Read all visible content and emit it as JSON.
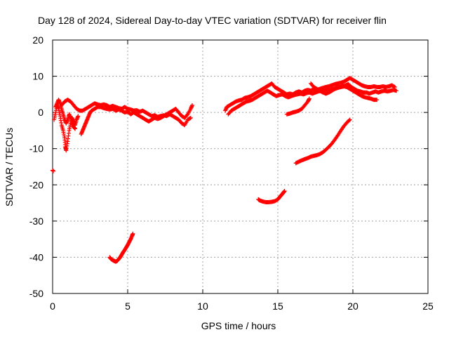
{
  "chart_data": {
    "type": "scatter",
    "title": "Day 128 of 2024, Sidereal Day-to-day VTEC variation (SDTVAR) for receiver flin",
    "xlabel": "GPS time / hours",
    "ylabel": "SDTVAR / TECUs",
    "xlim": [
      0,
      25
    ],
    "ylim": [
      -50,
      20
    ],
    "x_ticks": [
      0,
      5,
      10,
      15,
      20,
      25
    ],
    "y_ticks": [
      20,
      10,
      0,
      -10,
      -20,
      -30,
      -40,
      -50
    ],
    "grid": true,
    "marker": "+",
    "color": "#ff0000",
    "segments": [
      {
        "points": [
          [
            0.0,
            -16.0
          ],
          [
            0.05,
            -16.2
          ]
        ]
      },
      {
        "points": [
          [
            0.1,
            -2.0
          ],
          [
            0.2,
            0.0
          ],
          [
            0.3,
            2.0
          ],
          [
            0.4,
            1.0
          ],
          [
            0.5,
            -1.0
          ],
          [
            0.6,
            -3.5
          ],
          [
            0.7,
            -5.0
          ],
          [
            0.8,
            -7.0
          ],
          [
            0.85,
            -9.5
          ],
          [
            0.9,
            -10.5
          ],
          [
            1.0,
            -8.0
          ],
          [
            1.1,
            -5.0
          ],
          [
            1.2,
            -3.0
          ],
          [
            1.3,
            -1.5
          ],
          [
            1.4,
            -2.5
          ],
          [
            1.5,
            -3.5
          ],
          [
            1.6,
            -2.0
          ],
          [
            1.7,
            -1.0
          ]
        ]
      },
      {
        "points": [
          [
            0.2,
            1.5
          ],
          [
            0.3,
            2.5
          ],
          [
            0.4,
            3.5
          ],
          [
            0.5,
            2.5
          ],
          [
            0.6,
            1.0
          ],
          [
            0.7,
            -0.5
          ],
          [
            0.8,
            -2.0
          ],
          [
            0.9,
            -3.0
          ],
          [
            1.0,
            -2.0
          ],
          [
            1.1,
            -0.5
          ],
          [
            1.2,
            -1.5
          ],
          [
            1.3,
            -3.0
          ],
          [
            1.4,
            -4.0
          ],
          [
            1.5,
            -4.5
          ]
        ]
      },
      {
        "points": [
          [
            0.6,
            2.0
          ],
          [
            0.8,
            3.0
          ],
          [
            1.0,
            3.5
          ],
          [
            1.2,
            3.0
          ],
          [
            1.4,
            2.0
          ],
          [
            1.6,
            1.0
          ],
          [
            1.8,
            0.5
          ],
          [
            2.0,
            0.5
          ],
          [
            2.2,
            1.0
          ],
          [
            2.4,
            1.5
          ],
          [
            2.6,
            2.0
          ],
          [
            2.8,
            2.5
          ],
          [
            3.0,
            2.2
          ],
          [
            3.2,
            2.0
          ],
          [
            3.4,
            2.2
          ],
          [
            3.6,
            2.0
          ],
          [
            3.8,
            1.5
          ],
          [
            4.0,
            1.8
          ],
          [
            4.2,
            1.5
          ],
          [
            4.4,
            1.2
          ],
          [
            4.6,
            1.0
          ],
          [
            4.8,
            1.5
          ],
          [
            5.0,
            1.0
          ],
          [
            5.2,
            0.8
          ],
          [
            5.4,
            0.5
          ],
          [
            5.6,
            0.6
          ],
          [
            5.8,
            0.2
          ],
          [
            6.0,
            0.5
          ],
          [
            6.2,
            0.0
          ],
          [
            6.4,
            -0.5
          ],
          [
            6.6,
            -1.0
          ],
          [
            6.8,
            -0.8
          ],
          [
            7.0,
            -1.2
          ],
          [
            7.2,
            -1.0
          ],
          [
            7.4,
            -0.8
          ],
          [
            7.6,
            -1.0
          ],
          [
            7.8,
            -0.5
          ],
          [
            8.0,
            -1.0
          ],
          [
            8.2,
            -1.5
          ],
          [
            8.4,
            -2.0
          ],
          [
            8.6,
            -3.0
          ],
          [
            8.8,
            -3.5
          ],
          [
            9.0,
            -2.0
          ],
          [
            9.2,
            -1.5
          ]
        ]
      },
      {
        "points": [
          [
            1.9,
            -6.0
          ],
          [
            2.0,
            -5.0
          ],
          [
            2.1,
            -4.0
          ],
          [
            2.2,
            -3.0
          ],
          [
            2.3,
            -2.0
          ],
          [
            2.4,
            -1.0
          ],
          [
            2.5,
            0.0
          ],
          [
            2.6,
            0.5
          ],
          [
            2.8,
            1.0
          ],
          [
            3.0,
            1.5
          ],
          [
            3.2,
            1.5
          ],
          [
            3.4,
            1.2
          ],
          [
            3.6,
            1.0
          ],
          [
            3.8,
            0.8
          ],
          [
            4.0,
            1.0
          ],
          [
            4.2,
            0.5
          ],
          [
            4.4,
            0.8
          ],
          [
            4.6,
            0.5
          ],
          [
            4.8,
            0.0
          ],
          [
            5.0,
            0.2
          ],
          [
            5.2,
            -0.5
          ],
          [
            5.4,
            0.0
          ],
          [
            5.6,
            -0.5
          ],
          [
            5.8,
            -1.0
          ],
          [
            6.0,
            -1.5
          ],
          [
            6.2,
            -2.0
          ],
          [
            6.4,
            -2.5
          ],
          [
            6.6,
            -2.0
          ],
          [
            6.8,
            -1.5
          ],
          [
            7.0,
            -1.8
          ],
          [
            7.2,
            -1.5
          ],
          [
            7.4,
            -1.0
          ],
          [
            7.6,
            -0.5
          ],
          [
            7.8,
            0.0
          ],
          [
            8.0,
            0.5
          ],
          [
            8.2,
            1.0
          ],
          [
            8.4,
            0.0
          ],
          [
            8.6,
            -1.0
          ],
          [
            8.8,
            -1.5
          ],
          [
            9.0,
            -0.5
          ],
          [
            9.2,
            1.0
          ],
          [
            9.3,
            2.0
          ]
        ]
      },
      {
        "points": [
          [
            3.8,
            -40.0
          ],
          [
            3.9,
            -40.5
          ],
          [
            4.0,
            -40.8
          ],
          [
            4.1,
            -41.0
          ],
          [
            4.2,
            -41.2
          ],
          [
            4.3,
            -41.0
          ],
          [
            4.4,
            -40.5
          ],
          [
            4.5,
            -40.0
          ],
          [
            4.6,
            -39.3
          ],
          [
            4.7,
            -38.6
          ],
          [
            4.8,
            -38.0
          ],
          [
            4.9,
            -37.3
          ],
          [
            5.0,
            -36.6
          ],
          [
            5.1,
            -35.8
          ],
          [
            5.2,
            -35.0
          ],
          [
            5.3,
            -34.0
          ],
          [
            5.35,
            -33.5
          ]
        ]
      },
      {
        "points": [
          [
            11.5,
            0.5
          ],
          [
            11.6,
            1.5
          ],
          [
            11.8,
            2.0
          ],
          [
            12.0,
            2.5
          ],
          [
            12.2,
            3.0
          ],
          [
            12.4,
            3.3
          ],
          [
            12.6,
            3.5
          ],
          [
            12.8,
            4.0
          ],
          [
            13.0,
            4.2
          ],
          [
            13.2,
            4.5
          ],
          [
            13.4,
            5.0
          ],
          [
            13.6,
            5.5
          ],
          [
            13.8,
            6.0
          ],
          [
            14.0,
            6.5
          ],
          [
            14.2,
            7.0
          ],
          [
            14.4,
            7.5
          ],
          [
            14.6,
            8.0
          ],
          [
            14.8,
            7.0
          ],
          [
            15.0,
            6.5
          ],
          [
            15.2,
            6.0
          ],
          [
            15.4,
            5.5
          ],
          [
            15.6,
            5.0
          ],
          [
            15.8,
            5.2
          ],
          [
            16.0,
            5.0
          ],
          [
            16.2,
            5.5
          ],
          [
            16.4,
            5.8
          ],
          [
            16.6,
            5.5
          ],
          [
            16.8,
            6.0
          ],
          [
            17.0,
            6.2
          ],
          [
            17.2,
            6.0
          ],
          [
            17.4,
            6.5
          ],
          [
            17.6,
            6.2
          ],
          [
            17.8,
            6.5
          ],
          [
            18.0,
            6.8
          ],
          [
            18.2,
            7.0
          ],
          [
            18.4,
            7.2
          ],
          [
            18.6,
            7.5
          ],
          [
            18.8,
            7.8
          ],
          [
            19.0,
            8.0
          ],
          [
            19.2,
            8.2
          ],
          [
            19.4,
            8.5
          ],
          [
            19.6,
            9.0
          ],
          [
            19.8,
            9.5
          ],
          [
            20.0,
            9.0
          ],
          [
            20.2,
            8.5
          ],
          [
            20.4,
            8.0
          ],
          [
            20.6,
            7.5
          ],
          [
            20.8,
            7.2
          ],
          [
            21.0,
            7.0
          ],
          [
            21.2,
            7.0
          ],
          [
            21.4,
            7.2
          ],
          [
            21.6,
            7.0
          ],
          [
            21.8,
            7.0
          ],
          [
            22.0,
            7.2
          ],
          [
            22.2,
            7.0
          ],
          [
            22.4,
            7.2
          ],
          [
            22.6,
            7.5
          ],
          [
            22.8,
            7.0
          ]
        ]
      },
      {
        "points": [
          [
            11.7,
            -0.5
          ],
          [
            11.9,
            0.5
          ],
          [
            12.1,
            1.0
          ],
          [
            12.3,
            1.5
          ],
          [
            12.5,
            2.0
          ],
          [
            12.7,
            2.5
          ],
          [
            12.9,
            3.0
          ],
          [
            13.1,
            3.2
          ],
          [
            13.3,
            3.5
          ],
          [
            13.5,
            4.0
          ],
          [
            13.7,
            4.5
          ],
          [
            13.9,
            5.0
          ],
          [
            14.1,
            5.5
          ],
          [
            14.3,
            6.0
          ],
          [
            14.5,
            5.5
          ],
          [
            14.7,
            5.0
          ],
          [
            14.9,
            4.5
          ],
          [
            15.1,
            4.8
          ],
          [
            15.3,
            5.0
          ],
          [
            15.5,
            4.5
          ],
          [
            15.7,
            4.2
          ],
          [
            15.9,
            4.5
          ],
          [
            16.1,
            4.8
          ],
          [
            16.3,
            5.0
          ],
          [
            16.5,
            5.2
          ],
          [
            16.7,
            5.0
          ],
          [
            16.9,
            5.3
          ],
          [
            17.1,
            5.5
          ],
          [
            17.3,
            5.2
          ],
          [
            17.5,
            5.5
          ],
          [
            17.7,
            5.8
          ],
          [
            17.9,
            6.0
          ],
          [
            18.1,
            6.2
          ],
          [
            18.3,
            6.5
          ],
          [
            18.5,
            6.2
          ],
          [
            18.7,
            6.5
          ],
          [
            18.9,
            6.8
          ],
          [
            19.1,
            7.0
          ],
          [
            19.3,
            7.2
          ],
          [
            19.5,
            7.5
          ],
          [
            19.7,
            7.8
          ],
          [
            19.9,
            7.0
          ],
          [
            20.1,
            6.5
          ],
          [
            20.3,
            6.0
          ],
          [
            20.5,
            5.8
          ],
          [
            20.7,
            5.5
          ],
          [
            20.9,
            5.5
          ],
          [
            21.1,
            5.2
          ],
          [
            21.3,
            5.5
          ],
          [
            21.5,
            5.8
          ],
          [
            21.7,
            5.5
          ],
          [
            21.9,
            5.8
          ],
          [
            22.1,
            6.0
          ],
          [
            22.3,
            5.8
          ],
          [
            22.5,
            6.0
          ],
          [
            22.7,
            6.2
          ],
          [
            22.9,
            6.0
          ]
        ]
      },
      {
        "points": [
          [
            17.2,
            8.0
          ],
          [
            17.4,
            7.0
          ],
          [
            17.6,
            6.5
          ],
          [
            17.8,
            6.0
          ],
          [
            18.0,
            5.5
          ],
          [
            18.2,
            5.2
          ],
          [
            18.4,
            5.5
          ],
          [
            18.6,
            6.0
          ],
          [
            18.8,
            6.5
          ],
          [
            19.0,
            6.8
          ],
          [
            19.2,
            7.0
          ],
          [
            19.4,
            7.2
          ],
          [
            19.6,
            7.0
          ],
          [
            19.8,
            6.5
          ],
          [
            20.0,
            6.0
          ],
          [
            20.2,
            5.5
          ],
          [
            20.4,
            5.0
          ],
          [
            20.6,
            4.5
          ],
          [
            20.8,
            4.2
          ],
          [
            21.0,
            4.0
          ],
          [
            21.2,
            3.8
          ],
          [
            21.4,
            3.5
          ],
          [
            21.6,
            3.5
          ]
        ]
      },
      {
        "points": [
          [
            15.6,
            -0.5
          ],
          [
            15.8,
            -0.3
          ],
          [
            16.0,
            0.0
          ],
          [
            16.2,
            0.2
          ],
          [
            16.4,
            0.5
          ],
          [
            16.6,
            1.0
          ],
          [
            16.8,
            2.0
          ],
          [
            17.0,
            3.0
          ],
          [
            17.1,
            3.8
          ]
        ]
      },
      {
        "points": [
          [
            13.7,
            -24.0
          ],
          [
            13.8,
            -24.3
          ],
          [
            14.0,
            -24.6
          ],
          [
            14.2,
            -24.8
          ],
          [
            14.4,
            -24.8
          ],
          [
            14.6,
            -24.7
          ],
          [
            14.8,
            -24.5
          ],
          [
            15.0,
            -24.0
          ],
          [
            15.1,
            -23.5
          ],
          [
            15.2,
            -23.0
          ],
          [
            15.3,
            -22.5
          ],
          [
            15.4,
            -22.0
          ],
          [
            15.45,
            -21.7
          ]
        ]
      },
      {
        "points": [
          [
            16.2,
            -14.0
          ],
          [
            16.4,
            -13.6
          ],
          [
            16.6,
            -13.2
          ],
          [
            16.8,
            -12.9
          ],
          [
            17.0,
            -12.6
          ],
          [
            17.2,
            -12.2
          ],
          [
            17.4,
            -12.0
          ],
          [
            17.6,
            -11.8
          ],
          [
            17.8,
            -11.5
          ],
          [
            18.0,
            -11.0
          ],
          [
            18.2,
            -10.3
          ],
          [
            18.4,
            -9.5
          ],
          [
            18.6,
            -8.6
          ],
          [
            18.8,
            -7.5
          ],
          [
            19.0,
            -6.3
          ],
          [
            19.2,
            -5.0
          ],
          [
            19.4,
            -3.8
          ],
          [
            19.6,
            -2.8
          ],
          [
            19.8,
            -2.0
          ]
        ]
      }
    ]
  }
}
